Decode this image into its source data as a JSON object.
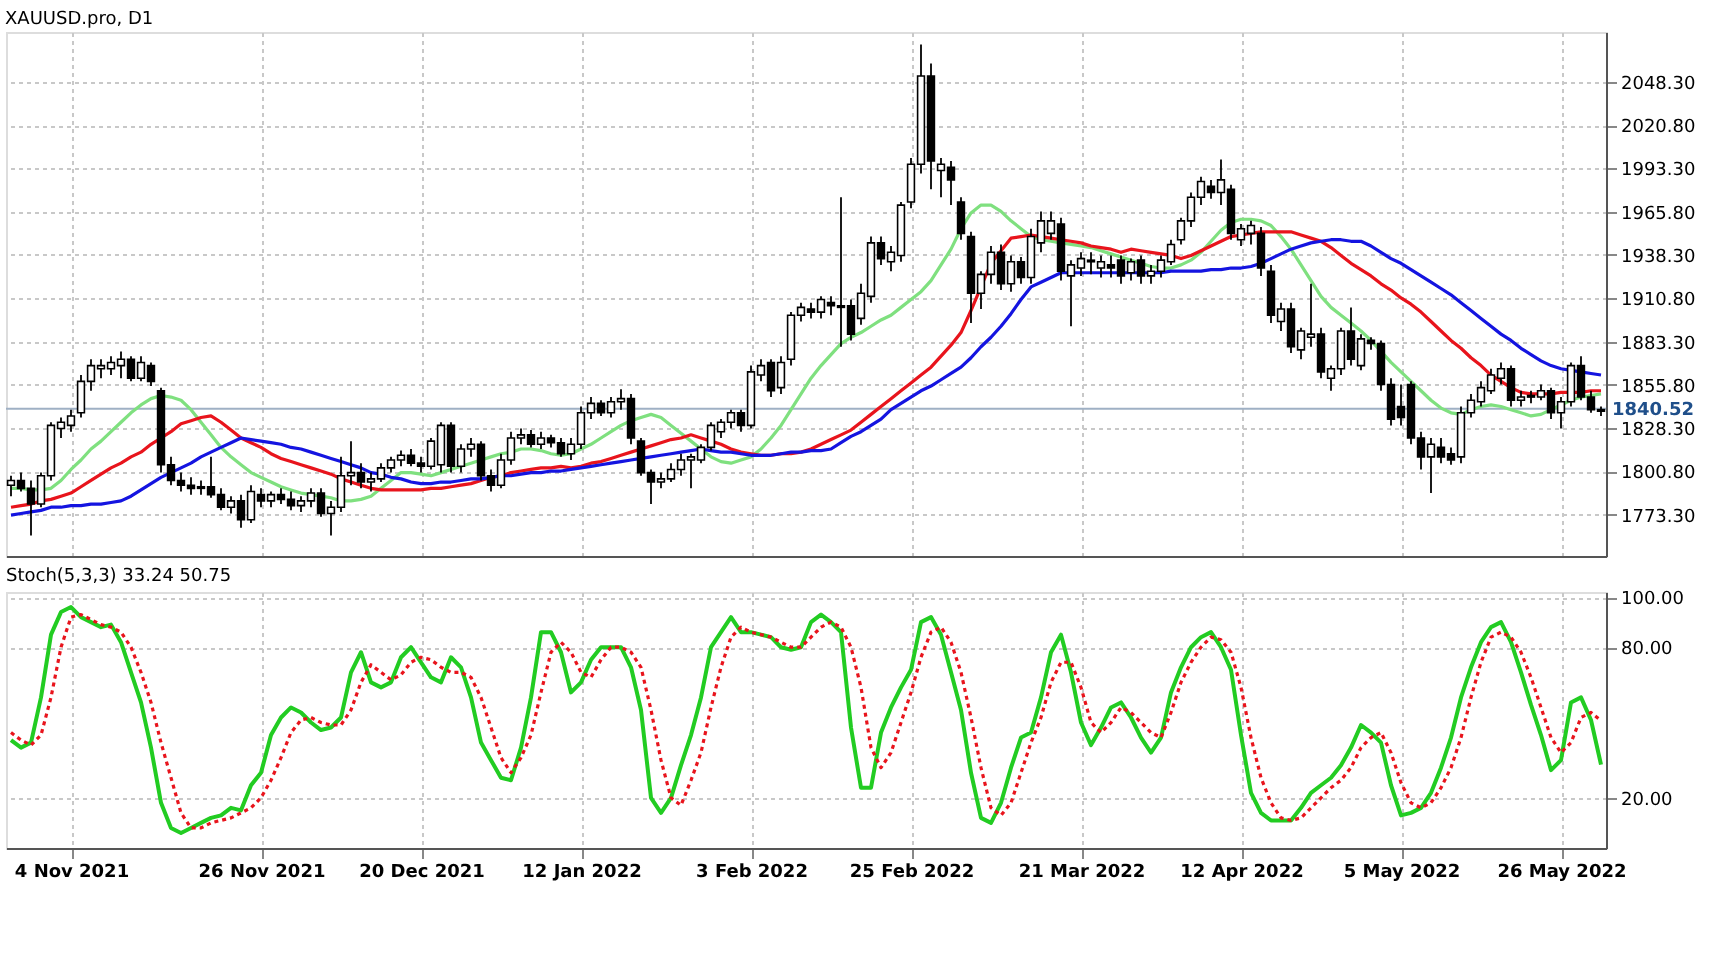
{
  "chart_data": [
    {
      "type": "candlestick",
      "title": "XAUUSD.pro, D1",
      "color": "#000000",
      "categories": [
        null,
        null,
        null,
        null,
        null,
        null,
        null,
        null,
        null,
        null,
        null,
        null,
        null,
        null,
        null,
        null,
        null,
        null,
        null,
        null,
        null,
        null,
        null,
        null,
        null,
        null,
        null,
        null,
        null,
        null,
        null,
        null,
        null,
        null,
        null,
        null,
        null,
        null,
        null,
        null,
        null,
        null,
        null,
        null,
        null,
        null,
        null,
        null,
        null,
        null,
        null,
        null,
        null,
        null,
        null,
        null,
        null,
        null,
        null,
        null,
        null,
        null,
        null,
        null,
        null,
        null,
        null,
        null,
        null,
        null,
        null,
        null,
        null,
        null,
        null,
        null,
        null,
        null,
        null,
        null,
        null,
        null,
        null,
        null,
        null,
        null,
        null,
        null,
        null,
        null,
        null,
        null,
        null,
        null,
        null,
        null,
        null,
        null,
        null,
        null,
        null,
        null,
        null,
        null,
        null,
        null,
        null,
        null,
        null,
        null,
        null,
        null,
        null,
        null,
        null,
        null,
        null,
        null,
        null,
        null,
        null,
        null,
        null,
        null,
        null,
        null,
        null,
        null,
        null,
        null,
        null,
        null,
        null,
        null,
        null,
        null,
        null,
        null,
        null,
        null,
        null,
        null,
        null,
        null,
        null,
        null,
        null,
        null,
        null,
        null,
        null,
        null,
        null,
        null,
        null,
        null,
        null,
        null,
        null,
        null
      ],
      "ohlc": [
        [
          1792,
          1798,
          1785,
          1795
        ],
        [
          1795,
          1800,
          1788,
          1790
        ],
        [
          1790,
          1795,
          1760,
          1780
        ],
        [
          1780,
          1800,
          1778,
          1798
        ],
        [
          1798,
          1832,
          1795,
          1830
        ],
        [
          1828,
          1835,
          1822,
          1832
        ],
        [
          1830,
          1840,
          1826,
          1836
        ],
        [
          1838,
          1862,
          1835,
          1858
        ],
        [
          1858,
          1872,
          1852,
          1868
        ],
        [
          1866,
          1872,
          1860,
          1868
        ],
        [
          1866,
          1874,
          1862,
          1870
        ],
        [
          1868,
          1877,
          1860,
          1872
        ],
        [
          1872,
          1874,
          1858,
          1860
        ],
        [
          1860,
          1874,
          1858,
          1870
        ],
        [
          1868,
          1870,
          1855,
          1858
        ],
        [
          1852,
          1854,
          1800,
          1805
        ],
        [
          1805,
          1810,
          1792,
          1795
        ],
        [
          1795,
          1800,
          1788,
          1792
        ],
        [
          1792,
          1797,
          1786,
          1790
        ],
        [
          1790,
          1795,
          1786,
          1791
        ],
        [
          1791,
          1810,
          1784,
          1786
        ],
        [
          1786,
          1790,
          1776,
          1778
        ],
        [
          1778,
          1785,
          1774,
          1782
        ],
        [
          1782,
          1786,
          1765,
          1770
        ],
        [
          1770,
          1792,
          1768,
          1788
        ],
        [
          1786,
          1790,
          1778,
          1782
        ],
        [
          1782,
          1788,
          1778,
          1786
        ],
        [
          1786,
          1790,
          1780,
          1783
        ],
        [
          1783,
          1788,
          1776,
          1779
        ],
        [
          1779,
          1785,
          1775,
          1782
        ],
        [
          1782,
          1790,
          1778,
          1787
        ],
        [
          1787,
          1790,
          1772,
          1774
        ],
        [
          1774,
          1782,
          1760,
          1778
        ],
        [
          1778,
          1810,
          1775,
          1798
        ],
        [
          1798,
          1820,
          1792,
          1800
        ],
        [
          1800,
          1806,
          1790,
          1794
        ],
        [
          1794,
          1800,
          1788,
          1796
        ],
        [
          1796,
          1806,
          1794,
          1803
        ],
        [
          1803,
          1810,
          1800,
          1808
        ],
        [
          1808,
          1814,
          1804,
          1811
        ],
        [
          1811,
          1815,
          1804,
          1806
        ],
        [
          1806,
          1810,
          1800,
          1804
        ],
        [
          1804,
          1822,
          1802,
          1820
        ],
        [
          1805,
          1832,
          1800,
          1830
        ],
        [
          1830,
          1832,
          1800,
          1804
        ],
        [
          1804,
          1818,
          1800,
          1815
        ],
        [
          1815,
          1822,
          1810,
          1818
        ],
        [
          1818,
          1820,
          1795,
          1798
        ],
        [
          1798,
          1802,
          1788,
          1792
        ],
        [
          1792,
          1812,
          1790,
          1808
        ],
        [
          1808,
          1826,
          1805,
          1822
        ],
        [
          1822,
          1828,
          1818,
          1824
        ],
        [
          1824,
          1827,
          1816,
          1818
        ],
        [
          1818,
          1826,
          1815,
          1822
        ],
        [
          1822,
          1824,
          1816,
          1819
        ],
        [
          1819,
          1822,
          1810,
          1812
        ],
        [
          1812,
          1822,
          1808,
          1818
        ],
        [
          1818,
          1842,
          1815,
          1838
        ],
        [
          1838,
          1848,
          1834,
          1844
        ],
        [
          1844,
          1846,
          1836,
          1838
        ],
        [
          1838,
          1848,
          1835,
          1845
        ],
        [
          1845,
          1853,
          1840,
          1847
        ],
        [
          1847,
          1850,
          1818,
          1822
        ],
        [
          1820,
          1822,
          1798,
          1800
        ],
        [
          1800,
          1802,
          1780,
          1794
        ],
        [
          1794,
          1800,
          1790,
          1796
        ],
        [
          1796,
          1806,
          1794,
          1802
        ],
        [
          1802,
          1812,
          1798,
          1808
        ],
        [
          1808,
          1812,
          1790,
          1810
        ],
        [
          1808,
          1818,
          1806,
          1816
        ],
        [
          1816,
          1832,
          1814,
          1830
        ],
        [
          1826,
          1834,
          1822,
          1832
        ],
        [
          1832,
          1840,
          1828,
          1838
        ],
        [
          1838,
          1840,
          1826,
          1830
        ],
        [
          1830,
          1868,
          1828,
          1864
        ],
        [
          1862,
          1872,
          1858,
          1868
        ],
        [
          1870,
          1872,
          1848,
          1852
        ],
        [
          1854,
          1874,
          1850,
          1870
        ],
        [
          1872,
          1902,
          1868,
          1900
        ],
        [
          1900,
          1908,
          1896,
          1905
        ],
        [
          1904,
          1908,
          1898,
          1902
        ],
        [
          1902,
          1912,
          1898,
          1910
        ],
        [
          1908,
          1912,
          1900,
          1906
        ],
        [
          1905,
          1975,
          1880,
          1906
        ],
        [
          1906,
          1910,
          1884,
          1888
        ],
        [
          1898,
          1920,
          1894,
          1914
        ],
        [
          1912,
          1950,
          1908,
          1946
        ],
        [
          1946,
          1950,
          1932,
          1936
        ],
        [
          1934,
          1944,
          1928,
          1940
        ],
        [
          1938,
          1972,
          1934,
          1970
        ],
        [
          1972,
          2000,
          1968,
          1996
        ],
        [
          1996,
          2072,
          1990,
          2052
        ],
        [
          2052,
          2060,
          1980,
          1998
        ],
        [
          1992,
          2000,
          1975,
          1996
        ],
        [
          1994,
          1998,
          1970,
          1986
        ],
        [
          1972,
          1975,
          1948,
          1952
        ],
        [
          1950,
          1953,
          1895,
          1914
        ],
        [
          1914,
          1928,
          1904,
          1926
        ],
        [
          1926,
          1944,
          1920,
          1940
        ],
        [
          1940,
          1945,
          1916,
          1920
        ],
        [
          1920,
          1938,
          1915,
          1934
        ],
        [
          1934,
          1937,
          1920,
          1924
        ],
        [
          1924,
          1955,
          1920,
          1950
        ],
        [
          1946,
          1966,
          1940,
          1960
        ],
        [
          1952,
          1966,
          1948,
          1960
        ],
        [
          1958,
          1962,
          1922,
          1928
        ],
        [
          1925,
          1935,
          1893,
          1932
        ],
        [
          1930,
          1940,
          1925,
          1936
        ],
        [
          1934,
          1940,
          1926,
          1935
        ],
        [
          1930,
          1938,
          1924,
          1934
        ],
        [
          1932,
          1938,
          1924,
          1930
        ],
        [
          1935,
          1938,
          1920,
          1925
        ],
        [
          1927,
          1936,
          1922,
          1934
        ],
        [
          1935,
          1938,
          1920,
          1925
        ],
        [
          1925,
          1932,
          1920,
          1928
        ],
        [
          1928,
          1938,
          1924,
          1935
        ],
        [
          1934,
          1948,
          1932,
          1945
        ],
        [
          1948,
          1962,
          1945,
          1960
        ],
        [
          1960,
          1978,
          1956,
          1975
        ],
        [
          1975,
          1988,
          1970,
          1985
        ],
        [
          1982,
          1986,
          1974,
          1978
        ],
        [
          1978,
          1999,
          1970,
          1986
        ],
        [
          1980,
          1983,
          1948,
          1952
        ],
        [
          1948,
          1958,
          1944,
          1955
        ],
        [
          1952,
          1960,
          1945,
          1957
        ],
        [
          1952,
          1956,
          1925,
          1930
        ],
        [
          1928,
          1932,
          1895,
          1900
        ],
        [
          1896,
          1908,
          1890,
          1904
        ],
        [
          1904,
          1908,
          1876,
          1880
        ],
        [
          1878,
          1892,
          1872,
          1890
        ],
        [
          1886,
          1920,
          1880,
          1888
        ],
        [
          1888,
          1892,
          1860,
          1864
        ],
        [
          1860,
          1868,
          1852,
          1866
        ],
        [
          1866,
          1892,
          1862,
          1890
        ],
        [
          1890,
          1905,
          1868,
          1872
        ],
        [
          1868,
          1888,
          1865,
          1885
        ],
        [
          1884,
          1886,
          1878,
          1882
        ],
        [
          1882,
          1884,
          1852,
          1856
        ],
        [
          1856,
          1860,
          1830,
          1834
        ],
        [
          1842,
          1856,
          1830,
          1835
        ],
        [
          1856,
          1858,
          1818,
          1822
        ],
        [
          1822,
          1826,
          1802,
          1810
        ],
        [
          1810,
          1822,
          1787,
          1818
        ],
        [
          1816,
          1822,
          1806,
          1810
        ],
        [
          1812,
          1816,
          1805,
          1808
        ],
        [
          1810,
          1842,
          1806,
          1838
        ],
        [
          1838,
          1850,
          1835,
          1846
        ],
        [
          1845,
          1858,
          1842,
          1854
        ],
        [
          1852,
          1866,
          1850,
          1862
        ],
        [
          1860,
          1870,
          1856,
          1866
        ],
        [
          1866,
          1868,
          1842,
          1846
        ],
        [
          1846,
          1852,
          1842,
          1848
        ],
        [
          1848,
          1852,
          1844,
          1849
        ],
        [
          1848,
          1856,
          1846,
          1852
        ],
        [
          1852,
          1854,
          1834,
          1838
        ],
        [
          1838,
          1848,
          1828,
          1845
        ],
        [
          1845,
          1870,
          1842,
          1868
        ],
        [
          1868,
          1874,
          1846,
          1848
        ],
        [
          1848,
          1852,
          1838,
          1840
        ],
        [
          1840,
          1842,
          1836,
          1839
        ]
      ],
      "series": [
        {
          "type": "line",
          "color": "#7fe07f",
          "values": [
            1790,
            1790,
            1789,
            1789,
            1790,
            1795,
            1802,
            1808,
            1815,
            1820,
            1826,
            1832,
            1838,
            1843,
            1847,
            1849,
            1848,
            1846,
            1840,
            1832,
            1824,
            1816,
            1810,
            1805,
            1800,
            1797,
            1794,
            1791,
            1789,
            1787,
            1786,
            1785,
            1784,
            1782,
            1782,
            1783,
            1785,
            1790,
            1795,
            1800,
            1800,
            1799,
            1798,
            1800,
            1802,
            1804,
            1806,
            1808,
            1810,
            1812,
            1813,
            1815,
            1815,
            1814,
            1812,
            1811,
            1812,
            1815,
            1818,
            1822,
            1826,
            1830,
            1833,
            1835,
            1837,
            1835,
            1830,
            1825,
            1820,
            1815,
            1810,
            1807,
            1806,
            1808,
            1810,
            1815,
            1822,
            1830,
            1840,
            1850,
            1860,
            1868,
            1875,
            1882,
            1886,
            1889,
            1893,
            1897,
            1900,
            1905,
            1910,
            1915,
            1922,
            1932,
            1942,
            1955,
            1965,
            1970,
            1970,
            1966,
            1960,
            1955,
            1950,
            1948,
            1947,
            1946,
            1945,
            1944,
            1943,
            1941,
            1939,
            1937,
            1935,
            1933,
            1931,
            1930,
            1930,
            1932,
            1935,
            1940,
            1947,
            1954,
            1959,
            1961,
            1961,
            1960,
            1957,
            1950,
            1942,
            1932,
            1922,
            1912,
            1905,
            1900,
            1895,
            1890,
            1884,
            1877,
            1870,
            1864,
            1858,
            1852,
            1846,
            1841,
            1838,
            1837,
            1840,
            1842,
            1843,
            1842,
            1840,
            1838,
            1836,
            1837,
            1840,
            1843,
            1846,
            1848,
            1849,
            1850
          ]
        },
        {
          "type": "line",
          "color": "#e8141c",
          "values": [
            1778,
            1779,
            1780,
            1782,
            1783,
            1785,
            1787,
            1791,
            1795,
            1799,
            1803,
            1806,
            1810,
            1813,
            1818,
            1822,
            1826,
            1831,
            1833,
            1835,
            1836,
            1832,
            1827,
            1822,
            1819,
            1816,
            1812,
            1809,
            1807,
            1805,
            1803,
            1801,
            1799,
            1796,
            1794,
            1792,
            1790,
            1789,
            1789,
            1789,
            1789,
            1789,
            1790,
            1790,
            1791,
            1792,
            1793,
            1795,
            1797,
            1798,
            1800,
            1801,
            1802,
            1803,
            1803,
            1804,
            1803,
            1804,
            1806,
            1807,
            1809,
            1811,
            1813,
            1815,
            1817,
            1819,
            1821,
            1822,
            1824,
            1822,
            1820,
            1818,
            1815,
            1813,
            1812,
            1811,
            1811,
            1812,
            1812,
            1813,
            1815,
            1818,
            1821,
            1824,
            1827,
            1832,
            1837,
            1842,
            1847,
            1852,
            1857,
            1862,
            1867,
            1874,
            1881,
            1889,
            1903,
            1918,
            1933,
            1941,
            1949,
            1950,
            1951,
            1950,
            1949,
            1948,
            1947,
            1946,
            1944,
            1943,
            1942,
            1940,
            1942,
            1941,
            1940,
            1939,
            1938,
            1936,
            1938,
            1941,
            1944,
            1947,
            1950,
            1951,
            1952,
            1953,
            1953,
            1953,
            1953,
            1951,
            1949,
            1947,
            1943,
            1938,
            1933,
            1929,
            1925,
            1920,
            1916,
            1911,
            1907,
            1902,
            1896,
            1890,
            1884,
            1879,
            1873,
            1868,
            1862,
            1858,
            1854,
            1851,
            1850,
            1850,
            1850,
            1851,
            1851,
            1851,
            1852,
            1852
          ]
        },
        {
          "type": "line",
          "color": "#1414e0",
          "values": [
            1773,
            1774,
            1775,
            1776,
            1778,
            1778,
            1779,
            1779,
            1780,
            1780,
            1781,
            1782,
            1785,
            1789,
            1793,
            1797,
            1800,
            1803,
            1806,
            1810,
            1813,
            1816,
            1819,
            1822,
            1821,
            1820,
            1819,
            1818,
            1816,
            1815,
            1813,
            1811,
            1809,
            1807,
            1805,
            1803,
            1800,
            1799,
            1797,
            1796,
            1794,
            1793,
            1793,
            1794,
            1794,
            1795,
            1796,
            1796,
            1797,
            1798,
            1798,
            1799,
            1800,
            1800,
            1801,
            1801,
            1802,
            1803,
            1804,
            1805,
            1806,
            1807,
            1808,
            1809,
            1810,
            1811,
            1812,
            1813,
            1814,
            1815,
            1814,
            1813,
            1813,
            1812,
            1811,
            1811,
            1811,
            1812,
            1813,
            1813,
            1814,
            1814,
            1815,
            1819,
            1823,
            1826,
            1830,
            1834,
            1840,
            1844,
            1848,
            1852,
            1855,
            1859,
            1863,
            1867,
            1873,
            1880,
            1886,
            1893,
            1901,
            1910,
            1918,
            1921,
            1924,
            1927,
            1927,
            1927,
            1927,
            1927,
            1927,
            1927,
            1927,
            1927,
            1927,
            1927,
            1928,
            1928,
            1928,
            1928,
            1929,
            1929,
            1930,
            1930,
            1931,
            1933,
            1936,
            1939,
            1942,
            1944,
            1946,
            1947,
            1948,
            1948,
            1947,
            1947,
            1944,
            1940,
            1936,
            1933,
            1929,
            1925,
            1921,
            1917,
            1913,
            1908,
            1903,
            1898,
            1893,
            1888,
            1884,
            1879,
            1875,
            1871,
            1868,
            1866,
            1865,
            1864,
            1863,
            1862
          ]
        }
      ],
      "ylim": [
        1747,
        2080
      ],
      "yticks": [
        {
          "value": 1773.3,
          "label": "1773.30"
        },
        {
          "value": 1800.8,
          "label": "1800.80"
        },
        {
          "value": 1828.3,
          "label": "1828.30"
        },
        {
          "value": 1855.8,
          "label": "1855.80"
        },
        {
          "value": 1883.3,
          "label": "1883.30"
        },
        {
          "value": 1910.8,
          "label": "1910.80"
        },
        {
          "value": 1938.3,
          "label": "1938.30"
        },
        {
          "value": 1965.8,
          "label": "1965.80"
        },
        {
          "value": 1993.3,
          "label": "1993.30"
        },
        {
          "value": 2020.8,
          "label": "2020.80"
        },
        {
          "value": 2048.3,
          "label": "2048.30"
        }
      ],
      "ref_lines": [
        {
          "axis": "y",
          "value": 1840.52,
          "label": "1840.52",
          "color": "#9fb0c4"
        }
      ],
      "grid": true,
      "tick_labels": "y",
      "marker": "none"
    },
    {
      "type": "line",
      "title": "Stoch(5,3,3) 33.24 50.75",
      "categories": [
        null,
        null,
        null,
        null,
        null,
        null,
        "4 Nov 2021",
        null,
        null,
        null,
        null,
        null,
        null,
        null,
        null,
        null,
        null,
        null,
        null,
        null,
        null,
        null,
        null,
        null,
        null,
        "26 Nov 2021",
        null,
        null,
        null,
        null,
        null,
        null,
        null,
        null,
        null,
        null,
        null,
        null,
        null,
        null,
        null,
        "20 Dec 2021",
        null,
        null,
        null,
        null,
        null,
        null,
        null,
        null,
        null,
        null,
        null,
        null,
        null,
        null,
        null,
        "12 Jan 2022",
        null,
        null,
        null,
        null,
        null,
        null,
        null,
        null,
        null,
        null,
        null,
        null,
        null,
        null,
        null,
        null,
        "3 Feb 2022",
        null,
        null,
        null,
        null,
        null,
        null,
        null,
        null,
        null,
        null,
        null,
        null,
        null,
        null,
        null,
        "25 Feb 2022",
        null,
        null,
        null,
        null,
        null,
        null,
        null,
        null,
        null,
        null,
        null,
        null,
        null,
        null,
        null,
        null,
        "21 Mar 2022",
        null,
        null,
        null,
        null,
        null,
        null,
        null,
        null,
        null,
        null,
        null,
        null,
        null,
        null,
        null,
        "12 Apr 2022",
        null,
        null,
        null,
        null,
        null,
        null,
        null,
        null,
        null,
        null,
        null,
        null,
        null,
        null,
        null,
        "5 May 2022",
        null,
        null,
        null,
        null,
        null,
        null,
        null,
        null,
        null,
        null,
        null,
        null,
        null,
        null,
        null,
        "26 May 2022",
        null,
        null,
        null,
        null
      ],
      "series": [
        {
          "color": "#22cc22",
          "line_style": "solid",
          "values": [
            43,
            40,
            42,
            60,
            85,
            94,
            96,
            92,
            90,
            88,
            89,
            82,
            70,
            58,
            40,
            18,
            8,
            6,
            8,
            10,
            12,
            13,
            16,
            15,
            25,
            30,
            45,
            52,
            56,
            54,
            50,
            47,
            48,
            52,
            70,
            78,
            66,
            64,
            66,
            76,
            80,
            74,
            68,
            66,
            76,
            72,
            60,
            42,
            35,
            28,
            27,
            40,
            60,
            86,
            86,
            78,
            62,
            66,
            75,
            80,
            80,
            80,
            72,
            55,
            20,
            14,
            20,
            33,
            45,
            60,
            80,
            86,
            92,
            86,
            86,
            85,
            84,
            80,
            79,
            80,
            90,
            93,
            90,
            86,
            48,
            24,
            24,
            46,
            56,
            64,
            71,
            90,
            92,
            85,
            70,
            55,
            30,
            12,
            10,
            18,
            32,
            44,
            46,
            60,
            78,
            85,
            70,
            50,
            41,
            48,
            56,
            58,
            52,
            44,
            38,
            44,
            62,
            72,
            80,
            84,
            86,
            80,
            71,
            45,
            22,
            14,
            11,
            11,
            11,
            16,
            22,
            25,
            28,
            33,
            40,
            49,
            46,
            42,
            25,
            13,
            14,
            16,
            22,
            32,
            44,
            60,
            72,
            82,
            88,
            90,
            82,
            70,
            57,
            45,
            31,
            35,
            58,
            60,
            51,
            33.24
          ]
        },
        {
          "color": "#e8141c",
          "line_style": "dotted",
          "values": [
            46,
            43,
            41,
            45,
            60,
            80,
            92,
            93,
            91,
            89,
            88,
            86,
            80,
            70,
            58,
            42,
            28,
            14,
            8,
            8,
            10,
            11,
            12,
            14,
            16,
            20,
            27,
            36,
            46,
            51,
            52,
            50,
            49,
            49,
            55,
            66,
            73,
            70,
            67,
            69,
            74,
            76,
            75,
            72,
            70,
            70,
            68,
            60,
            48,
            36,
            30,
            36,
            45,
            62,
            78,
            82,
            78,
            70,
            68,
            75,
            80,
            80,
            78,
            72,
            55,
            35,
            20,
            17,
            27,
            38,
            56,
            72,
            84,
            88,
            86,
            85,
            84,
            82,
            80,
            80,
            84,
            88,
            90,
            88,
            80,
            64,
            40,
            32,
            38,
            50,
            62,
            76,
            86,
            88,
            82,
            70,
            52,
            32,
            16,
            13,
            18,
            30,
            42,
            52,
            66,
            74,
            74,
            64,
            50,
            46,
            50,
            56,
            54,
            50,
            46,
            44,
            54,
            66,
            74,
            80,
            84,
            83,
            78,
            64,
            44,
            28,
            18,
            12,
            11,
            12,
            16,
            20,
            24,
            27,
            32,
            40,
            44,
            46,
            38,
            26,
            18,
            16,
            18,
            24,
            32,
            44,
            60,
            74,
            84,
            86,
            84,
            78,
            68,
            56,
            44,
            38,
            42,
            52,
            54,
            50.75
          ]
        }
      ],
      "ylim": [
        0,
        102
      ],
      "yticks": [
        {
          "value": 20,
          "label": "20.00"
        },
        {
          "value": 80,
          "label": "80.00"
        },
        {
          "value": 100,
          "label": "100.00"
        }
      ],
      "grid": true,
      "marker": "none"
    }
  ]
}
